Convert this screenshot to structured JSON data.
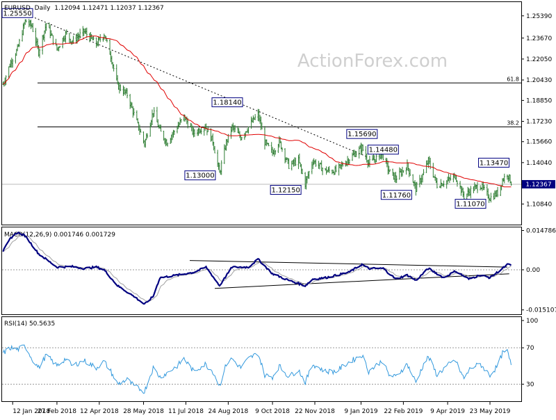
{
  "header": {
    "symbol": "EURUSD",
    "period": "Daily",
    "ohlc": "1.12094 1.12471 1.12037 1.12367"
  },
  "watermark": "ActionForex.com",
  "colors": {
    "candle": "#2e7d32",
    "sma": "#e00000",
    "trend": "#000000",
    "macd": "#000080",
    "signal": "#a0a0a0",
    "rsi": "#3399dd",
    "price_box": "#000080"
  },
  "x_axis": {
    "labels": [
      "12 Jan 2018",
      "27 Feb 2018",
      "12 Apr 2018",
      "28 May 2018",
      "11 Jul 2018",
      "24 Aug 2018",
      "9 Oct 2018",
      "22 Nov 2018",
      "9 Jan 2019",
      "22 Feb 2019",
      "9 Apr 2019",
      "23 May 2019"
    ]
  },
  "chart_data": [
    {
      "type": "candlestick",
      "name": "price",
      "ylim": [
        1.093,
        1.264
      ],
      "y_ticks": [
        "1.25390",
        "1.23670",
        "1.22050",
        "1.20430",
        "1.18850",
        "1.17230",
        "1.15660",
        "1.14040",
        "1.12367",
        "1.10840"
      ],
      "last_price": "1.12367",
      "fib_levels": [
        {
          "label": "61.8",
          "value": 1.202
        },
        {
          "label": "38.2",
          "value": 1.168
        }
      ],
      "trendline": {
        "from": [
          "2018-01-25",
          1.2555
        ],
        "to": [
          "2019-01-15",
          1.145
        ]
      },
      "annotations": [
        {
          "text": "1.25550",
          "date": "2018-01-25",
          "value": 1.2555,
          "pos": "left"
        },
        {
          "text": "1.18140",
          "date": "2018-08-23",
          "value": 1.1814,
          "pos": "above"
        },
        {
          "text": "1.13000",
          "date": "2018-08-15",
          "value": 1.13,
          "pos": "left"
        },
        {
          "text": "1.12150",
          "date": "2018-11-12",
          "value": 1.1215,
          "pos": "left"
        },
        {
          "text": "1.15690",
          "date": "2019-01-10",
          "value": 1.1569,
          "pos": "above"
        },
        {
          "text": "1.14480",
          "date": "2019-02-01",
          "value": 1.1448,
          "pos": "above"
        },
        {
          "text": "1.11760",
          "date": "2019-03-07",
          "value": 1.1176,
          "pos": "left"
        },
        {
          "text": "1.13470",
          "date": "2019-05-27",
          "value": 1.1347,
          "pos": "above"
        },
        {
          "text": "1.11070",
          "date": "2019-05-23",
          "value": 1.1107,
          "pos": "left"
        }
      ],
      "anchors": [
        [
          "2018-01-02",
          1.201
        ],
        [
          "2018-01-10",
          1.218
        ],
        [
          "2018-01-17",
          1.228
        ],
        [
          "2018-01-25",
          1.25
        ],
        [
          "2018-02-01",
          1.246
        ],
        [
          "2018-02-08",
          1.226
        ],
        [
          "2018-02-16",
          1.248
        ],
        [
          "2018-02-27",
          1.228
        ],
        [
          "2018-03-08",
          1.24
        ],
        [
          "2018-03-15",
          1.234
        ],
        [
          "2018-03-27",
          1.242
        ],
        [
          "2018-04-09",
          1.232
        ],
        [
          "2018-04-17",
          1.24
        ],
        [
          "2018-04-24",
          1.223
        ],
        [
          "2018-05-01",
          1.2
        ],
        [
          "2018-05-11",
          1.193
        ],
        [
          "2018-05-18",
          1.178
        ],
        [
          "2018-05-29",
          1.155
        ],
        [
          "2018-06-07",
          1.18
        ],
        [
          "2018-06-14",
          1.165
        ],
        [
          "2018-06-21",
          1.156
        ],
        [
          "2018-07-02",
          1.168
        ],
        [
          "2018-07-09",
          1.176
        ],
        [
          "2018-07-19",
          1.163
        ],
        [
          "2018-07-31",
          1.169
        ],
        [
          "2018-08-08",
          1.157
        ],
        [
          "2018-08-15",
          1.132
        ],
        [
          "2018-08-22",
          1.156
        ],
        [
          "2018-08-28",
          1.168
        ],
        [
          "2018-09-06",
          1.16
        ],
        [
          "2018-09-14",
          1.168
        ],
        [
          "2018-09-24",
          1.178
        ],
        [
          "2018-10-01",
          1.156
        ],
        [
          "2018-10-09",
          1.148
        ],
        [
          "2018-10-16",
          1.157
        ],
        [
          "2018-10-26",
          1.138
        ],
        [
          "2018-11-05",
          1.142
        ],
        [
          "2018-11-12",
          1.124
        ],
        [
          "2018-11-20",
          1.142
        ],
        [
          "2018-12-03",
          1.134
        ],
        [
          "2018-12-14",
          1.134
        ],
        [
          "2018-12-27",
          1.143
        ],
        [
          "2019-01-10",
          1.152
        ],
        [
          "2019-01-17",
          1.14
        ],
        [
          "2019-01-31",
          1.147
        ],
        [
          "2019-02-07",
          1.134
        ],
        [
          "2019-02-14",
          1.128
        ],
        [
          "2019-02-26",
          1.138
        ],
        [
          "2019-03-07",
          1.12
        ],
        [
          "2019-03-15",
          1.132
        ],
        [
          "2019-03-20",
          1.142
        ],
        [
          "2019-03-29",
          1.123
        ],
        [
          "2019-04-08",
          1.126
        ],
        [
          "2019-04-17",
          1.13
        ],
        [
          "2019-04-26",
          1.114
        ],
        [
          "2019-05-03",
          1.119
        ],
        [
          "2019-05-13",
          1.123
        ],
        [
          "2019-05-23",
          1.113
        ],
        [
          "2019-05-31",
          1.117
        ],
        [
          "2019-06-05",
          1.127
        ],
        [
          "2019-06-10",
          1.132
        ],
        [
          "2019-06-14",
          1.125
        ]
      ]
    },
    {
      "type": "line",
      "name": "MACD(12,26,9)",
      "label": "MACD(12,26,9) 0.001746 0.001729",
      "ylim": [
        -0.0165,
        0.0157
      ],
      "y_ticks": [
        "0.014786",
        "0.00",
        "-0.015107"
      ],
      "trendlines": [
        {
          "from": [
            "2018-07-15",
            0.0035
          ],
          "to": [
            "2019-06-10",
            0.001
          ]
        },
        {
          "from": [
            "2018-08-10",
            -0.007
          ],
          "to": [
            "2019-06-12",
            -0.0015
          ]
        }
      ],
      "anchors": [
        [
          "2018-01-02",
          0.007
        ],
        [
          "2018-01-10",
          0.012
        ],
        [
          "2018-01-17",
          0.014
        ],
        [
          "2018-01-25",
          0.0128
        ],
        [
          "2018-02-08",
          0.006
        ],
        [
          "2018-02-27",
          0.001
        ],
        [
          "2018-03-15",
          0.0012
        ],
        [
          "2018-03-27",
          0.0005
        ],
        [
          "2018-04-09",
          0.001
        ],
        [
          "2018-04-17",
          0.0
        ],
        [
          "2018-05-01",
          -0.006
        ],
        [
          "2018-05-18",
          -0.01
        ],
        [
          "2018-05-29",
          -0.013
        ],
        [
          "2018-06-07",
          -0.01
        ],
        [
          "2018-06-14",
          -0.003
        ],
        [
          "2018-07-02",
          -0.002
        ],
        [
          "2018-07-19",
          -0.001
        ],
        [
          "2018-08-01",
          0.001
        ],
        [
          "2018-08-15",
          -0.006
        ],
        [
          "2018-08-28",
          0.001
        ],
        [
          "2018-09-14",
          0.001
        ],
        [
          "2018-09-24",
          0.004
        ],
        [
          "2018-10-09",
          -0.0015
        ],
        [
          "2018-10-26",
          -0.004
        ],
        [
          "2018-11-12",
          -0.006
        ],
        [
          "2018-11-20",
          -0.0035
        ],
        [
          "2018-12-03",
          -0.003
        ],
        [
          "2018-12-27",
          -0.001
        ],
        [
          "2019-01-10",
          0.002
        ],
        [
          "2019-01-17",
          0.0005
        ],
        [
          "2019-02-01",
          0.0005
        ],
        [
          "2019-02-14",
          -0.0035
        ],
        [
          "2019-02-26",
          -0.002
        ],
        [
          "2019-03-07",
          -0.004
        ],
        [
          "2019-03-20",
          0.0005
        ],
        [
          "2019-04-05",
          -0.003
        ],
        [
          "2019-04-17",
          -0.0005
        ],
        [
          "2019-05-01",
          -0.0035
        ],
        [
          "2019-05-13",
          -0.002
        ],
        [
          "2019-05-23",
          -0.003
        ],
        [
          "2019-06-05",
          0.0005
        ],
        [
          "2019-06-10",
          0.002
        ],
        [
          "2019-06-14",
          0.0017
        ]
      ]
    },
    {
      "type": "line",
      "name": "RSI(14)",
      "label": "RSI(14) 50.5635",
      "ylim": [
        12,
        103
      ],
      "y_ticks": [
        "100",
        "70",
        "30"
      ],
      "reference_lines": [
        70,
        30
      ],
      "anchors": [
        [
          "2018-01-02",
          64
        ],
        [
          "2018-01-10",
          70
        ],
        [
          "2018-01-17",
          68
        ],
        [
          "2018-01-25",
          72
        ],
        [
          "2018-02-01",
          58
        ],
        [
          "2018-02-08",
          48
        ],
        [
          "2018-02-16",
          62
        ],
        [
          "2018-02-27",
          50
        ],
        [
          "2018-03-08",
          58
        ],
        [
          "2018-03-15",
          50
        ],
        [
          "2018-03-27",
          56
        ],
        [
          "2018-04-09",
          48
        ],
        [
          "2018-04-17",
          55
        ],
        [
          "2018-04-24",
          44
        ],
        [
          "2018-05-01",
          30
        ],
        [
          "2018-05-11",
          35
        ],
        [
          "2018-05-18",
          28
        ],
        [
          "2018-05-29",
          22
        ],
        [
          "2018-06-07",
          48
        ],
        [
          "2018-06-14",
          38
        ],
        [
          "2018-06-21",
          42
        ],
        [
          "2018-07-02",
          50
        ],
        [
          "2018-07-09",
          58
        ],
        [
          "2018-07-19",
          44
        ],
        [
          "2018-07-31",
          52
        ],
        [
          "2018-08-08",
          44
        ],
        [
          "2018-08-15",
          28
        ],
        [
          "2018-08-22",
          52
        ],
        [
          "2018-08-28",
          58
        ],
        [
          "2018-09-06",
          48
        ],
        [
          "2018-09-14",
          58
        ],
        [
          "2018-09-24",
          64
        ],
        [
          "2018-10-01",
          40
        ],
        [
          "2018-10-09",
          38
        ],
        [
          "2018-10-16",
          50
        ],
        [
          "2018-10-26",
          38
        ],
        [
          "2018-11-05",
          46
        ],
        [
          "2018-11-12",
          32
        ],
        [
          "2018-11-20",
          52
        ],
        [
          "2018-12-03",
          44
        ],
        [
          "2018-12-14",
          44
        ],
        [
          "2018-12-27",
          54
        ],
        [
          "2019-01-10",
          62
        ],
        [
          "2019-01-17",
          44
        ],
        [
          "2019-01-31",
          56
        ],
        [
          "2019-02-07",
          40
        ],
        [
          "2019-02-14",
          38
        ],
        [
          "2019-02-26",
          52
        ],
        [
          "2019-03-07",
          32
        ],
        [
          "2019-03-15",
          52
        ],
        [
          "2019-03-20",
          60
        ],
        [
          "2019-03-29",
          40
        ],
        [
          "2019-04-08",
          50
        ],
        [
          "2019-04-17",
          56
        ],
        [
          "2019-04-26",
          36
        ],
        [
          "2019-05-03",
          48
        ],
        [
          "2019-05-13",
          52
        ],
        [
          "2019-05-23",
          40
        ],
        [
          "2019-05-31",
          50
        ],
        [
          "2019-06-05",
          64
        ],
        [
          "2019-06-10",
          66
        ],
        [
          "2019-06-14",
          51
        ]
      ]
    }
  ]
}
